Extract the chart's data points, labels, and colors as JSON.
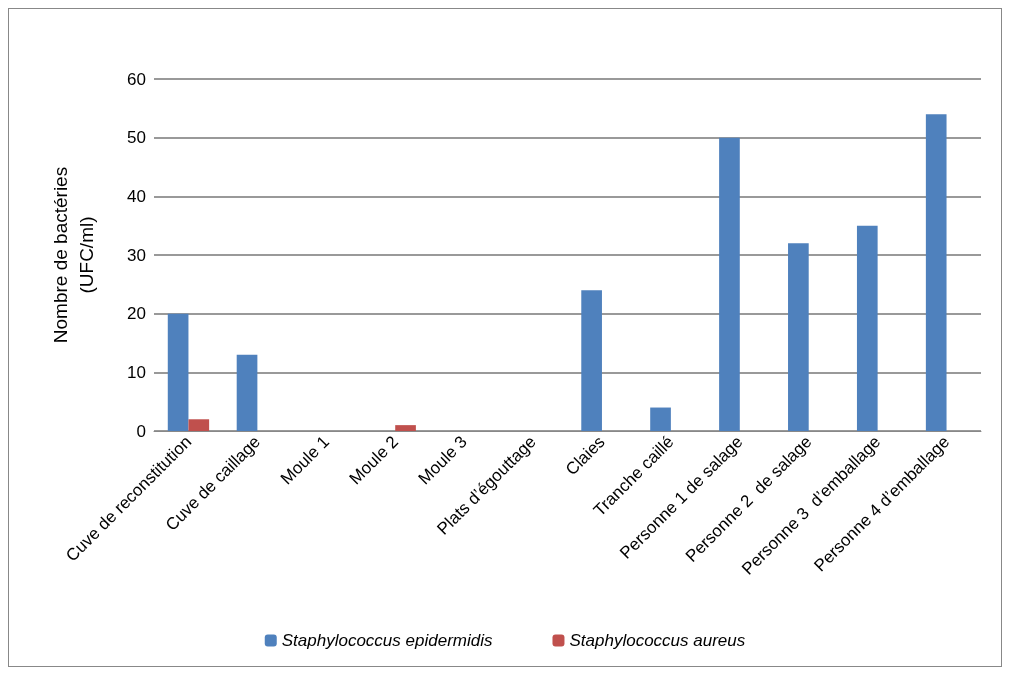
{
  "chart_data": {
    "type": "bar",
    "ylabel": "Nombre de bactéries\n(UFC/ml)",
    "categories": [
      "Cuve de reconstitution",
      "Cuve de caillage",
      "Moule 1",
      "Moule 2",
      "Moule 3",
      "Plats d’égouttage",
      "Claies",
      "Tranche caillé",
      "Personne 1 de salage",
      "Personne 2  de salage",
      "Personne 3  d’emballage",
      "Personne 4 d’emballage"
    ],
    "series": [
      {
        "name": "Staphylococcus epidermidis",
        "color": "#4f81bd",
        "values": [
          20,
          13,
          0,
          0,
          0,
          0,
          24,
          4,
          50,
          32,
          35,
          54
        ]
      },
      {
        "name": "Staphylococcus aureus",
        "color": "#c0504d",
        "values": [
          2,
          0,
          0,
          1,
          0,
          0,
          0,
          0,
          0,
          0,
          0,
          0
        ]
      }
    ],
    "ylim": [
      0,
      60
    ],
    "yticks": [
      0,
      10,
      20,
      30,
      40,
      50,
      60
    ],
    "grid": "y",
    "legend": "bottom"
  }
}
